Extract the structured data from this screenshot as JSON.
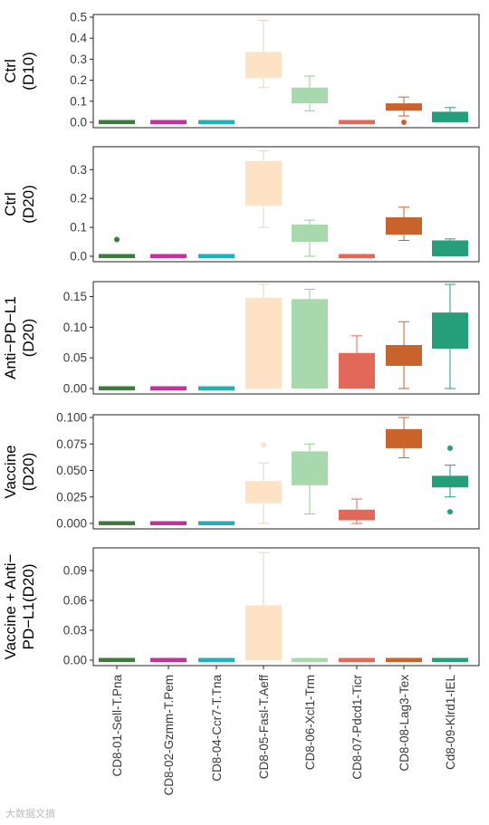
{
  "watermark": "大数据文摘",
  "chart_data": {
    "type": "box",
    "categories": [
      "CD8-01-Sell-T.Pna",
      "CD8-02-Gzmm-T.Pem",
      "CD8-04-Ccr7-T.Tna",
      "CD8-05-Fasl-T.Aeff",
      "CD8-06-Xcl1-Trm",
      "CD8-07-Pdcd1-Ticr",
      "CD8-08-Lag3-Tex",
      "Cd8-09-Klrd1-IEL"
    ],
    "colors": [
      "#3d7a3b",
      "#c2339a",
      "#26aeb6",
      "#fde2c6",
      "#a8d9ad",
      "#e2695a",
      "#c9622b",
      "#269e7a"
    ],
    "panels": [
      {
        "row_label": [
          "Ctrl",
          "(D10)"
        ],
        "ylim": [
          0,
          0.5
        ],
        "yticks": [
          0.0,
          0.1,
          0.2,
          0.3,
          0.4,
          0.5
        ],
        "yticklabels": [
          "0.0",
          "0.1",
          "0.2",
          "0.3",
          "0.4",
          "0.5"
        ],
        "boxes": [
          {
            "min": 0,
            "q1": 0,
            "median": 0,
            "q3": 0,
            "max": 0,
            "outliers": []
          },
          {
            "min": 0,
            "q1": 0,
            "median": 0,
            "q3": 0,
            "max": 0,
            "outliers": []
          },
          {
            "min": 0,
            "q1": 0,
            "median": 0,
            "q3": 0,
            "max": 0,
            "outliers": []
          },
          {
            "min": 0.165,
            "q1": 0.21,
            "median": 0.22,
            "q3": 0.335,
            "max": 0.485,
            "outliers": []
          },
          {
            "min": 0.055,
            "q1": 0.09,
            "median": 0.12,
            "q3": 0.165,
            "max": 0.22,
            "outliers": []
          },
          {
            "min": 0,
            "q1": 0,
            "median": 0,
            "q3": 0,
            "max": 0,
            "outliers": []
          },
          {
            "min": 0.03,
            "q1": 0.055,
            "median": 0.07,
            "q3": 0.09,
            "max": 0.12,
            "outliers": [
              0.0
            ]
          },
          {
            "min": 0.0,
            "q1": 0.0,
            "median": 0.03,
            "q3": 0.05,
            "max": 0.07,
            "outliers": []
          }
        ]
      },
      {
        "row_label": [
          "Ctrl",
          "(D20)"
        ],
        "ylim": [
          0,
          0.37
        ],
        "yticks": [
          0.0,
          0.1,
          0.2,
          0.3
        ],
        "yticklabels": [
          "0.0",
          "0.1",
          "0.2",
          "0.3"
        ],
        "boxes": [
          {
            "min": 0,
            "q1": 0,
            "median": 0,
            "q3": 0,
            "max": 0,
            "outliers": [
              0.058
            ]
          },
          {
            "min": 0,
            "q1": 0,
            "median": 0,
            "q3": 0,
            "max": 0,
            "outliers": []
          },
          {
            "min": 0,
            "q1": 0,
            "median": 0,
            "q3": 0,
            "max": 0,
            "outliers": []
          },
          {
            "min": 0.1,
            "q1": 0.175,
            "median": 0.24,
            "q3": 0.33,
            "max": 0.365,
            "outliers": []
          },
          {
            "min": 0.0,
            "q1": 0.05,
            "median": 0.08,
            "q3": 0.11,
            "max": 0.125,
            "outliers": []
          },
          {
            "min": 0,
            "q1": 0,
            "median": 0,
            "q3": 0,
            "max": 0,
            "outliers": []
          },
          {
            "min": 0.055,
            "q1": 0.075,
            "median": 0.11,
            "q3": 0.135,
            "max": 0.17,
            "outliers": []
          },
          {
            "min": 0.0,
            "q1": 0.0,
            "median": 0.04,
            "q3": 0.055,
            "max": 0.06,
            "outliers": []
          }
        ]
      },
      {
        "row_label": [
          "Anti−PD−L1",
          "(D20)"
        ],
        "ylim": [
          0,
          0.17
        ],
        "yticks": [
          0.0,
          0.05,
          0.1,
          0.15
        ],
        "yticklabels": [
          "0.00",
          "0.05",
          "0.10",
          "0.15"
        ],
        "boxes": [
          {
            "min": 0,
            "q1": 0,
            "median": 0,
            "q3": 0,
            "max": 0,
            "outliers": []
          },
          {
            "min": 0,
            "q1": 0,
            "median": 0,
            "q3": 0,
            "max": 0,
            "outliers": []
          },
          {
            "min": 0,
            "q1": 0,
            "median": 0,
            "q3": 0,
            "max": 0,
            "outliers": []
          },
          {
            "min": 0.0,
            "q1": 0.0,
            "median": 0.0,
            "q3": 0.148,
            "max": 0.17,
            "outliers": []
          },
          {
            "min": 0.0,
            "q1": 0.0,
            "median": 0.0,
            "q3": 0.146,
            "max": 0.162,
            "outliers": []
          },
          {
            "min": 0.0,
            "q1": 0.0,
            "median": 0.0,
            "q3": 0.058,
            "max": 0.086,
            "outliers": []
          },
          {
            "min": 0.0,
            "q1": 0.037,
            "median": 0.055,
            "q3": 0.071,
            "max": 0.109,
            "outliers": []
          },
          {
            "min": 0.0,
            "q1": 0.065,
            "median": 0.1,
            "q3": 0.124,
            "max": 0.17,
            "outliers": []
          }
        ]
      },
      {
        "row_label": [
          "Vaccine",
          "(D20)"
        ],
        "ylim": [
          0,
          0.1
        ],
        "yticks": [
          0.0,
          0.025,
          0.05,
          0.075,
          0.1
        ],
        "yticklabels": [
          "0.000",
          "0.025",
          "0.050",
          "0.075",
          "0.100"
        ],
        "boxes": [
          {
            "min": 0,
            "q1": 0,
            "median": 0,
            "q3": 0,
            "max": 0,
            "outliers": []
          },
          {
            "min": 0,
            "q1": 0,
            "median": 0,
            "q3": 0,
            "max": 0,
            "outliers": []
          },
          {
            "min": 0,
            "q1": 0,
            "median": 0,
            "q3": 0,
            "max": 0,
            "outliers": []
          },
          {
            "min": 0.0,
            "q1": 0.019,
            "median": 0.03,
            "q3": 0.04,
            "max": 0.057,
            "outliers": [
              0.074
            ]
          },
          {
            "min": 0.009,
            "q1": 0.036,
            "median": 0.05,
            "q3": 0.068,
            "max": 0.075,
            "outliers": []
          },
          {
            "min": 0.0,
            "q1": 0.003,
            "median": 0.008,
            "q3": 0.013,
            "max": 0.023,
            "outliers": []
          },
          {
            "min": 0.062,
            "q1": 0.071,
            "median": 0.08,
            "q3": 0.089,
            "max": 0.1,
            "outliers": []
          },
          {
            "min": 0.025,
            "q1": 0.034,
            "median": 0.04,
            "q3": 0.045,
            "max": 0.055,
            "outliers": [
              0.011,
              0.071
            ]
          }
        ]
      },
      {
        "row_label": [
          "Vaccine + Anti−",
          "PD−L1(D20)"
        ],
        "ylim": [
          0,
          0.11
        ],
        "yticks": [
          0.0,
          0.03,
          0.06,
          0.09
        ],
        "yticklabels": [
          "0.00",
          "0.03",
          "0.06",
          "0.09"
        ],
        "boxes": [
          {
            "min": 0,
            "q1": 0,
            "median": 0,
            "q3": 0,
            "max": 0,
            "outliers": []
          },
          {
            "min": 0,
            "q1": 0,
            "median": 0,
            "q3": 0,
            "max": 0,
            "outliers": []
          },
          {
            "min": 0,
            "q1": 0,
            "median": 0,
            "q3": 0,
            "max": 0,
            "outliers": []
          },
          {
            "min": 0.0,
            "q1": 0.0,
            "median": 0.0,
            "q3": 0.055,
            "max": 0.108,
            "outliers": []
          },
          {
            "min": 0,
            "q1": 0,
            "median": 0,
            "q3": 0,
            "max": 0,
            "outliers": []
          },
          {
            "min": 0,
            "q1": 0,
            "median": 0,
            "q3": 0,
            "max": 0,
            "outliers": []
          },
          {
            "min": 0,
            "q1": 0,
            "median": 0,
            "q3": 0,
            "max": 0,
            "outliers": []
          },
          {
            "min": 0,
            "q1": 0,
            "median": 0,
            "q3": 0,
            "max": 0,
            "outliers": []
          }
        ]
      }
    ]
  }
}
